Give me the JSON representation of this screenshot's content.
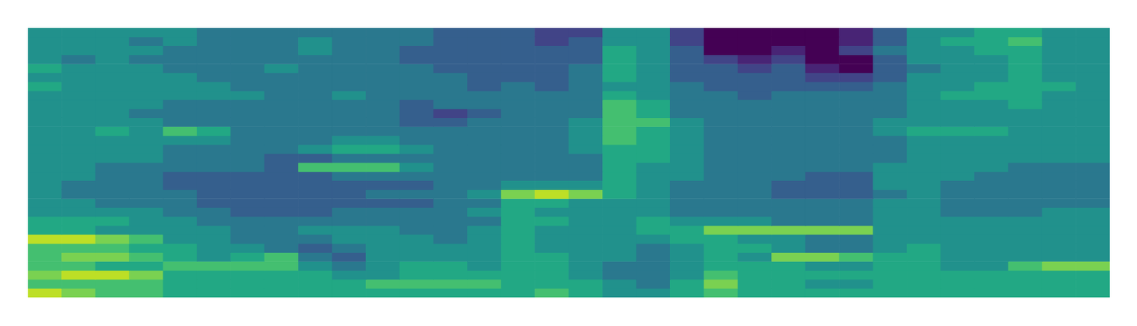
{
  "chart_data": {
    "type": "heatmap",
    "grid": false,
    "tick_labels": false,
    "zlim": [
      0,
      10
    ],
    "cells": [
      [
        5,
        5,
        5,
        5,
        5,
        4,
        4,
        4,
        4,
        4,
        4,
        4,
        3,
        3,
        3,
        2,
        2,
        5,
        5,
        2,
        0,
        0,
        0,
        0,
        1,
        3,
        5,
        5,
        6,
        6,
        5,
        5
      ],
      [
        5,
        5,
        5,
        4,
        5,
        4,
        4,
        4,
        5,
        4,
        4,
        4,
        3,
        3,
        3,
        2,
        3,
        5,
        5,
        2,
        0,
        0,
        0,
        0,
        1,
        3,
        5,
        6,
        6,
        7,
        5,
        5
      ],
      [
        5,
        5,
        5,
        5,
        4,
        4,
        4,
        4,
        5,
        4,
        4,
        3,
        3,
        3,
        3,
        3,
        3,
        6,
        5,
        3,
        0,
        0,
        1,
        0,
        2,
        4,
        5,
        5,
        6,
        6,
        5,
        5
      ],
      [
        5,
        4,
        5,
        4,
        4,
        4,
        4,
        4,
        4,
        4,
        4,
        3,
        3,
        3,
        3,
        3,
        3,
        6,
        5,
        3,
        2,
        1,
        2,
        0,
        0,
        3,
        5,
        5,
        5,
        6,
        5,
        5
      ],
      [
        6,
        5,
        5,
        5,
        4,
        4,
        4,
        5,
        4,
        4,
        4,
        4,
        3,
        3,
        3,
        3,
        4,
        6,
        5,
        3,
        3,
        2,
        3,
        1,
        0,
        3,
        4,
        5,
        5,
        6,
        5,
        5
      ],
      [
        5,
        5,
        5,
        5,
        5,
        4,
        4,
        4,
        4,
        4,
        4,
        4,
        4,
        3,
        3,
        3,
        4,
        6,
        5,
        3,
        3,
        3,
        3,
        2,
        2,
        3,
        5,
        5,
        5,
        6,
        5,
        5
      ],
      [
        6,
        5,
        5,
        5,
        5,
        5,
        4,
        4,
        4,
        4,
        4,
        4,
        4,
        3,
        4,
        3,
        4,
        5,
        5,
        4,
        3,
        3,
        3,
        3,
        3,
        4,
        5,
        5,
        6,
        6,
        6,
        5
      ],
      [
        5,
        5,
        5,
        5,
        5,
        5,
        5,
        4,
        4,
        5,
        4,
        4,
        4,
        4,
        4,
        4,
        4,
        6,
        5,
        4,
        4,
        3,
        4,
        4,
        4,
        4,
        5,
        6,
        6,
        6,
        5,
        5
      ],
      [
        5,
        5,
        5,
        5,
        4,
        4,
        4,
        4,
        4,
        4,
        4,
        3,
        4,
        4,
        4,
        4,
        4,
        7,
        6,
        4,
        4,
        4,
        4,
        4,
        4,
        4,
        5,
        5,
        5,
        6,
        5,
        5
      ],
      [
        5,
        5,
        5,
        4,
        4,
        4,
        4,
        4,
        4,
        4,
        4,
        3,
        2,
        3,
        4,
        4,
        4,
        7,
        6,
        4,
        4,
        4,
        4,
        4,
        4,
        4,
        5,
        5,
        5,
        5,
        5,
        5
      ],
      [
        5,
        5,
        5,
        5,
        4,
        4,
        4,
        4,
        4,
        4,
        4,
        3,
        3,
        4,
        4,
        4,
        5,
        7,
        7,
        5,
        4,
        4,
        4,
        4,
        4,
        5,
        5,
        5,
        5,
        5,
        5,
        5
      ],
      [
        5,
        5,
        6,
        5,
        7,
        6,
        4,
        4,
        4,
        4,
        4,
        4,
        4,
        4,
        4,
        4,
        5,
        7,
        6,
        5,
        4,
        4,
        4,
        4,
        4,
        5,
        6,
        6,
        6,
        5,
        5,
        5
      ],
      [
        5,
        5,
        5,
        5,
        5,
        5,
        4,
        4,
        4,
        5,
        5,
        4,
        4,
        4,
        4,
        4,
        5,
        7,
        6,
        5,
        4,
        4,
        4,
        4,
        4,
        4,
        5,
        5,
        5,
        5,
        5,
        5
      ],
      [
        5,
        5,
        5,
        5,
        4,
        4,
        4,
        4,
        5,
        6,
        6,
        5,
        4,
        4,
        4,
        4,
        5,
        6,
        6,
        5,
        4,
        4,
        4,
        4,
        4,
        4,
        5,
        5,
        5,
        5,
        5,
        5
      ],
      [
        5,
        5,
        5,
        5,
        4,
        4,
        4,
        3,
        3,
        4,
        4,
        4,
        4,
        4,
        4,
        4,
        4,
        6,
        6,
        5,
        4,
        4,
        4,
        4,
        4,
        4,
        5,
        5,
        5,
        5,
        5,
        5
      ],
      [
        5,
        5,
        4,
        4,
        4,
        4,
        4,
        3,
        7,
        7,
        7,
        5,
        4,
        4,
        4,
        4,
        4,
        6,
        5,
        5,
        4,
        4,
        4,
        4,
        4,
        5,
        5,
        5,
        5,
        4,
        4,
        4
      ],
      [
        5,
        5,
        4,
        4,
        3,
        3,
        3,
        3,
        3,
        4,
        4,
        4,
        4,
        4,
        4,
        4,
        4,
        6,
        5,
        5,
        4,
        4,
        4,
        3,
        3,
        5,
        5,
        5,
        4,
        4,
        4,
        4
      ],
      [
        5,
        4,
        4,
        4,
        3,
        3,
        3,
        3,
        3,
        3,
        3,
        3,
        4,
        4,
        5,
        5,
        5,
        6,
        5,
        4,
        4,
        4,
        3,
        3,
        3,
        5,
        5,
        4,
        4,
        4,
        4,
        4
      ],
      [
        5,
        4,
        4,
        4,
        4,
        3,
        3,
        3,
        3,
        3,
        4,
        4,
        4,
        5,
        8,
        9,
        8,
        6,
        5,
        4,
        4,
        4,
        3,
        3,
        3,
        4,
        5,
        4,
        4,
        4,
        4,
        4
      ],
      [
        5,
        5,
        4,
        4,
        4,
        3,
        3,
        3,
        3,
        3,
        3,
        3,
        4,
        4,
        6,
        6,
        5,
        5,
        5,
        4,
        4,
        4,
        4,
        4,
        4,
        5,
        5,
        4,
        4,
        4,
        4,
        4
      ],
      [
        5,
        5,
        5,
        5,
        4,
        4,
        3,
        3,
        3,
        4,
        4,
        4,
        4,
        5,
        6,
        5,
        5,
        5,
        5,
        4,
        4,
        4,
        4,
        4,
        4,
        5,
        5,
        4,
        4,
        4,
        5,
        5
      ],
      [
        6,
        6,
        6,
        5,
        5,
        4,
        4,
        4,
        4,
        4,
        4,
        4,
        4,
        4,
        6,
        6,
        5,
        5,
        6,
        5,
        5,
        5,
        4,
        4,
        4,
        5,
        5,
        5,
        5,
        5,
        5,
        5
      ],
      [
        6,
        6,
        5,
        5,
        5,
        5,
        4,
        4,
        5,
        5,
        5,
        4,
        4,
        5,
        6,
        5,
        5,
        5,
        6,
        6,
        8,
        8,
        8,
        8,
        8,
        5,
        5,
        5,
        5,
        5,
        5,
        5
      ],
      [
        9,
        9,
        8,
        7,
        5,
        5,
        4,
        4,
        4,
        5,
        5,
        5,
        4,
        5,
        6,
        5,
        5,
        5,
        5,
        6,
        6,
        5,
        5,
        4,
        4,
        5,
        5,
        5,
        5,
        5,
        5,
        5
      ],
      [
        7,
        7,
        7,
        6,
        6,
        5,
        5,
        4,
        3,
        4,
        5,
        5,
        5,
        5,
        6,
        5,
        5,
        5,
        4,
        5,
        6,
        6,
        5,
        4,
        4,
        5,
        6,
        5,
        5,
        5,
        5,
        5
      ],
      [
        7,
        8,
        8,
        7,
        6,
        5,
        6,
        7,
        4,
        3,
        5,
        5,
        5,
        5,
        6,
        6,
        5,
        5,
        4,
        5,
        6,
        5,
        8,
        8,
        7,
        6,
        6,
        5,
        5,
        5,
        5,
        5
      ],
      [
        7,
        7,
        6,
        6,
        7,
        7,
        7,
        7,
        5,
        4,
        5,
        6,
        6,
        5,
        6,
        6,
        5,
        4,
        4,
        5,
        6,
        6,
        6,
        5,
        5,
        6,
        6,
        5,
        5,
        7,
        8,
        8
      ],
      [
        8,
        9,
        9,
        8,
        6,
        6,
        6,
        6,
        6,
        5,
        5,
        6,
        6,
        6,
        6,
        6,
        5,
        4,
        4,
        5,
        7,
        6,
        6,
        6,
        6,
        6,
        6,
        6,
        6,
        6,
        6,
        6
      ],
      [
        7,
        7,
        7,
        7,
        6,
        6,
        6,
        6,
        6,
        6,
        7,
        7,
        7,
        7,
        6,
        6,
        6,
        5,
        4,
        6,
        8,
        6,
        6,
        5,
        5,
        6,
        6,
        6,
        6,
        6,
        6,
        6
      ],
      [
        9,
        8,
        7,
        7,
        6,
        6,
        6,
        6,
        6,
        6,
        6,
        6,
        6,
        6,
        6,
        7,
        6,
        5,
        5,
        6,
        7,
        6,
        6,
        6,
        6,
        6,
        6,
        6,
        6,
        6,
        6,
        6
      ]
    ]
  }
}
